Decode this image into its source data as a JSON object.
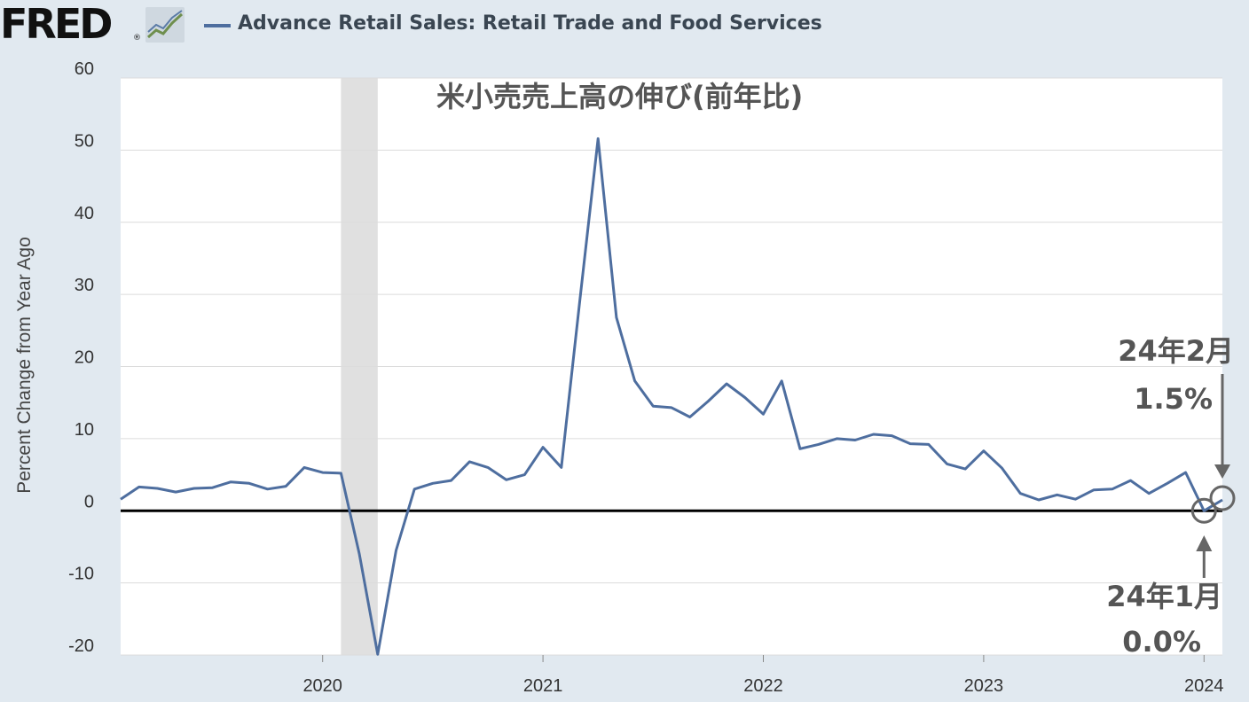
{
  "header": {
    "logo_text": "FRED",
    "logo_mark": "®",
    "logo_icon": "line-chart-icon",
    "legend_label": "Advance Retail Sales: Retail Trade and Food Services"
  },
  "chart_data": {
    "type": "line",
    "title": "米小売売上高の伸び(前年比)",
    "ylabel": "Percent Change from Year Ago",
    "xlabel": "",
    "ylim": [
      -20,
      60
    ],
    "yticks": [
      60,
      50,
      40,
      30,
      20,
      10,
      0,
      -10,
      -20
    ],
    "xticks": [
      "2020",
      "2021",
      "2022",
      "2023",
      "2024"
    ],
    "xlim": [
      "2019-02",
      "2024-02"
    ],
    "grid": true,
    "line_color": "#4e6e9f",
    "recession": {
      "start": "2020-02",
      "end": "2020-04",
      "color": "#e0e0e0"
    },
    "zero_line": 0,
    "series": [
      {
        "x": [
          "2019-02",
          "2019-03",
          "2019-04",
          "2019-05",
          "2019-06",
          "2019-07",
          "2019-08",
          "2019-09",
          "2019-10",
          "2019-11",
          "2019-12",
          "2020-01",
          "2020-02",
          "2020-03",
          "2020-04",
          "2020-05",
          "2020-06",
          "2020-07",
          "2020-08",
          "2020-09",
          "2020-10",
          "2020-11",
          "2020-12",
          "2021-01",
          "2021-02",
          "2021-03",
          "2021-04",
          "2021-05",
          "2021-06",
          "2021-07",
          "2021-08",
          "2021-09",
          "2021-10",
          "2021-11",
          "2021-12",
          "2022-01",
          "2022-02",
          "2022-03",
          "2022-04",
          "2022-05",
          "2022-06",
          "2022-07",
          "2022-08",
          "2022-09",
          "2022-10",
          "2022-11",
          "2022-12",
          "2023-01",
          "2023-02",
          "2023-03",
          "2023-04",
          "2023-05",
          "2023-06",
          "2023-07",
          "2023-08",
          "2023-09",
          "2023-10",
          "2023-11",
          "2023-12",
          "2024-01",
          "2024-02"
        ],
        "values": [
          1.6,
          3.3,
          3.1,
          2.6,
          3.1,
          3.2,
          4.0,
          3.8,
          3.0,
          3.4,
          6.0,
          5.3,
          5.2,
          -6.0,
          -19.9,
          -5.5,
          3.0,
          3.8,
          4.2,
          6.8,
          6.0,
          4.3,
          5.0,
          8.8,
          6.0,
          29.0,
          51.6,
          26.8,
          18.0,
          14.5,
          14.3,
          13.0,
          15.2,
          17.6,
          15.7,
          13.4,
          18.0,
          8.6,
          9.2,
          10.0,
          9.8,
          10.6,
          10.4,
          9.3,
          9.2,
          6.5,
          5.8,
          8.3,
          5.9,
          2.4,
          1.5,
          2.2,
          1.6,
          2.9,
          3.0,
          4.2,
          2.4,
          3.8,
          5.3,
          0.0,
          1.5
        ]
      }
    ],
    "annotations": [
      {
        "x": "2024-02",
        "y": 1.5,
        "label_line1": "24年2月",
        "label_line2": "1.5%"
      },
      {
        "x": "2024-01",
        "y": 0.0,
        "label_line1": "24年1月",
        "label_line2": "0.0%"
      }
    ]
  }
}
